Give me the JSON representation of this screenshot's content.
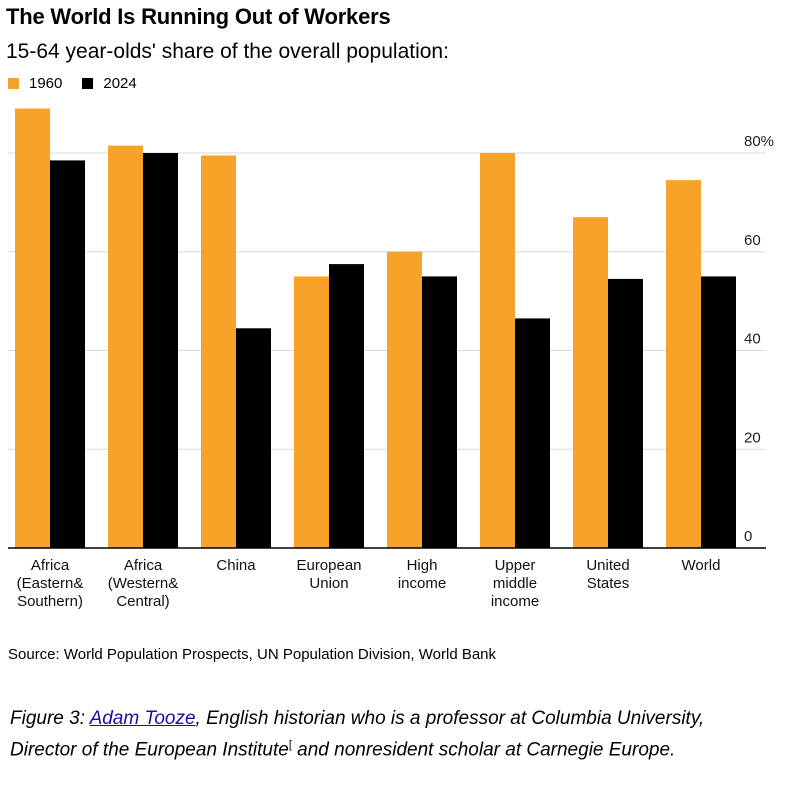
{
  "chart": {
    "title": "The World Is Running Out of Workers",
    "subtitle": "15-64 year-olds' share of the overall population:",
    "source": "Source: World Population Prospects, UN Population Division, World Bank"
  },
  "colors": {
    "series_1960": "#f7a229",
    "series_2024": "#000000",
    "grid": "#d9d9d9"
  },
  "chart_data": {
    "type": "bar",
    "title": "The World Is Running Out of Workers",
    "subtitle": "15-64 year-olds' share of the overall population:",
    "categories": [
      [
        "Africa",
        "(Eastern&",
        "Southern)"
      ],
      [
        "Africa",
        "(Western&",
        "Central)"
      ],
      [
        "China"
      ],
      [
        "European",
        "Union"
      ],
      [
        "High",
        "income"
      ],
      [
        "Upper",
        "middle",
        "income"
      ],
      [
        "United",
        "States"
      ],
      [
        "World"
      ]
    ],
    "series": [
      {
        "name": "1960",
        "values": [
          89,
          81.5,
          79.5,
          55,
          60,
          80,
          67,
          74.5
        ]
      },
      {
        "name": "2024",
        "values": [
          78.5,
          80,
          44.5,
          57.5,
          55,
          46.5,
          54.5,
          55
        ]
      }
    ],
    "y_ticks": [
      0,
      20,
      40,
      60,
      80
    ],
    "y_tick_labels": [
      "0",
      "20",
      "40",
      "60",
      "80%"
    ],
    "ylim": [
      0,
      92
    ],
    "axis_position": "right",
    "grid": true,
    "legend_position": "top-left"
  },
  "caption": {
    "prefix": "Figure 3: ",
    "link": "Adam Tooze",
    "text1": ", English historian who is a professor at Columbia University, Director of the European Institute",
    "sup": "[",
    "text2": " and nonresident scholar at Carnegie Europe."
  }
}
